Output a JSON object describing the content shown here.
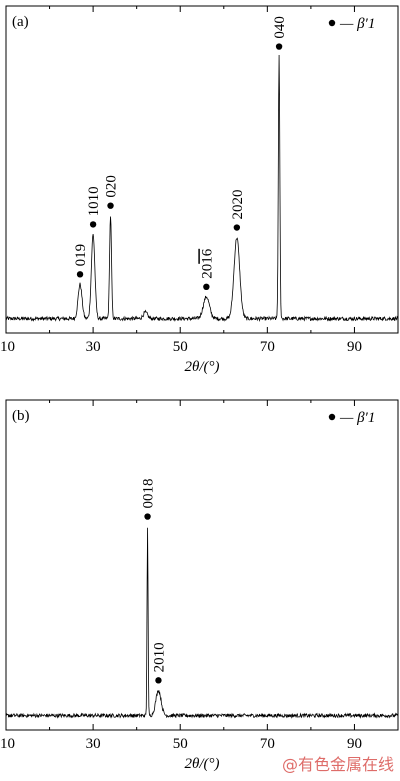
{
  "chart_data": [
    {
      "type": "line",
      "panel_label": "(a)",
      "legend": {
        "marker": "●",
        "label": "— β′1",
        "placement": "top-right"
      },
      "xlabel": "2θ/(°)",
      "xlim": [
        10,
        100
      ],
      "ylim": [
        0,
        100
      ],
      "x_ticks": [
        10,
        30,
        50,
        70,
        90
      ],
      "grid": false,
      "baseline": 3,
      "peaks": [
        {
          "x": 27.0,
          "height": 11,
          "width": 0.45,
          "label": "019"
        },
        {
          "x": 30.0,
          "height": 27,
          "width": 0.4,
          "label": "1010"
        },
        {
          "x": 34.0,
          "height": 33,
          "width": 0.22,
          "label": "020"
        },
        {
          "x": 42.0,
          "height": 2,
          "width": 0.5,
          "label": ""
        },
        {
          "x": 56.0,
          "height": 7,
          "width": 0.7,
          "label": "20[16]"
        },
        {
          "x": 63.0,
          "height": 26,
          "width": 0.65,
          "label": "2020"
        },
        {
          "x": 72.7,
          "height": 84,
          "width": 0.17,
          "label": "040"
        }
      ]
    },
    {
      "type": "line",
      "panel_label": "(b)",
      "legend": {
        "marker": "●",
        "label": "— β′1",
        "placement": "top-right"
      },
      "xlabel": "2θ/(°)",
      "xlim": [
        10,
        100
      ],
      "ylim": [
        0,
        100
      ],
      "x_ticks": [
        10,
        30,
        50,
        70,
        90
      ],
      "grid": false,
      "baseline": 3,
      "peaks": [
        {
          "x": 42.5,
          "height": 60,
          "width": 0.12,
          "label": "0018"
        },
        {
          "x": 45.0,
          "height": 8,
          "width": 0.6,
          "label": "2010"
        }
      ]
    }
  ],
  "watermark": "@有色金属在线"
}
